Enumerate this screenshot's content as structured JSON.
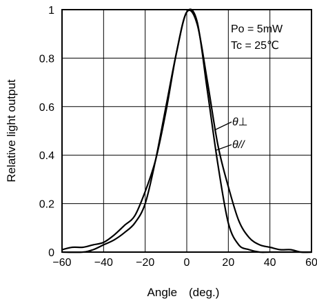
{
  "chart_data": {
    "type": "line",
    "title": "",
    "xlabel": "Angle　(deg.)",
    "ylabel": "Relative light output",
    "xlim": [
      -60,
      60
    ],
    "ylim": [
      0,
      1
    ],
    "xticks": [
      -60,
      -40,
      -20,
      0,
      20,
      40,
      60
    ],
    "yticks": [
      0,
      0.2,
      0.4,
      0.6,
      0.8,
      1
    ],
    "xtick_labels": [
      "−60",
      "−40",
      "−20",
      "0",
      "20",
      "40",
      "60"
    ],
    "ytick_labels": [
      "0",
      "0.2",
      "0.4",
      "0.6",
      "0.8",
      "1"
    ],
    "grid": true,
    "annotations": [
      "Po = 5mW",
      "Tc = 25℃"
    ],
    "series": [
      {
        "name": "θ⊥",
        "x": [
          -60,
          -55,
          -50,
          -45,
          -40,
          -35,
          -30,
          -25,
          -20,
          -15,
          -10,
          -5,
          0,
          5,
          10,
          15,
          20,
          25,
          30,
          35,
          40,
          45,
          50,
          55,
          60
        ],
        "y": [
          0.01,
          0.02,
          0.02,
          0.03,
          0.04,
          0.07,
          0.11,
          0.15,
          0.25,
          0.38,
          0.58,
          0.82,
          0.99,
          0.94,
          0.7,
          0.44,
          0.27,
          0.13,
          0.06,
          0.03,
          0.02,
          0.01,
          0.01,
          0.0,
          0.0
        ]
      },
      {
        "name": "θ//",
        "x": [
          -60,
          -50,
          -45,
          -40,
          -35,
          -30,
          -25,
          -20,
          -15,
          -10,
          -5,
          0,
          5,
          10,
          15,
          20,
          25,
          30,
          35,
          40,
          50,
          60
        ],
        "y": [
          0.0,
          0.0,
          0.01,
          0.03,
          0.05,
          0.08,
          0.12,
          0.2,
          0.38,
          0.6,
          0.82,
          0.99,
          0.95,
          0.66,
          0.36,
          0.12,
          0.03,
          0.01,
          0.0,
          0.0,
          0.0,
          0.0
        ]
      }
    ]
  }
}
